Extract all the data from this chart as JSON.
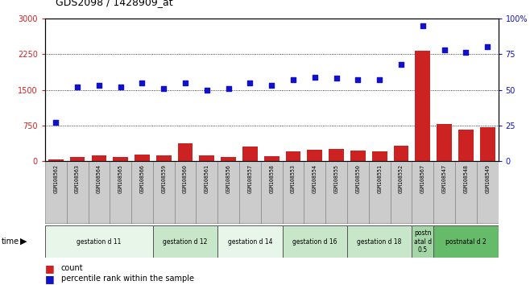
{
  "title": "GDS2098 / 1428909_at",
  "samples": [
    "GSM108562",
    "GSM108563",
    "GSM108564",
    "GSM108565",
    "GSM108566",
    "GSM108559",
    "GSM108560",
    "GSM108561",
    "GSM108556",
    "GSM108557",
    "GSM108558",
    "GSM108553",
    "GSM108554",
    "GSM108555",
    "GSM108550",
    "GSM108551",
    "GSM108552",
    "GSM108567",
    "GSM108547",
    "GSM108548",
    "GSM108549"
  ],
  "counts": [
    30,
    90,
    120,
    80,
    130,
    120,
    380,
    120,
    90,
    310,
    110,
    200,
    230,
    260,
    220,
    200,
    320,
    2320,
    780,
    660,
    720
  ],
  "percentiles": [
    27,
    52,
    53,
    52,
    55,
    51,
    55,
    50,
    51,
    55,
    53,
    57,
    59,
    58,
    57,
    57,
    68,
    95,
    78,
    76,
    80
  ],
  "groups": [
    {
      "label": "gestation d 11",
      "start": 0,
      "end": 5,
      "color": "#e8f5e9"
    },
    {
      "label": "gestation d 12",
      "start": 5,
      "end": 8,
      "color": "#c8e6c9"
    },
    {
      "label": "gestation d 14",
      "start": 8,
      "end": 11,
      "color": "#e8f5e9"
    },
    {
      "label": "gestation d 16",
      "start": 11,
      "end": 14,
      "color": "#c8e6c9"
    },
    {
      "label": "gestation d 18",
      "start": 14,
      "end": 17,
      "color": "#c8e6c9"
    },
    {
      "label": "postn\natal d\n0.5",
      "start": 17,
      "end": 18,
      "color": "#a5d6a7"
    },
    {
      "label": "postnatal d 2",
      "start": 18,
      "end": 21,
      "color": "#66bb6a"
    }
  ],
  "left_yticks": [
    0,
    750,
    1500,
    2250,
    3000
  ],
  "right_yticks": [
    0,
    25,
    50,
    75,
    100
  ],
  "bar_color": "#cc2222",
  "scatter_color": "#1111cc",
  "left_ylim": [
    0,
    3000
  ],
  "right_ylim": [
    0,
    100
  ],
  "sample_box_color": "#cccccc",
  "sample_box_edge": "#888888"
}
